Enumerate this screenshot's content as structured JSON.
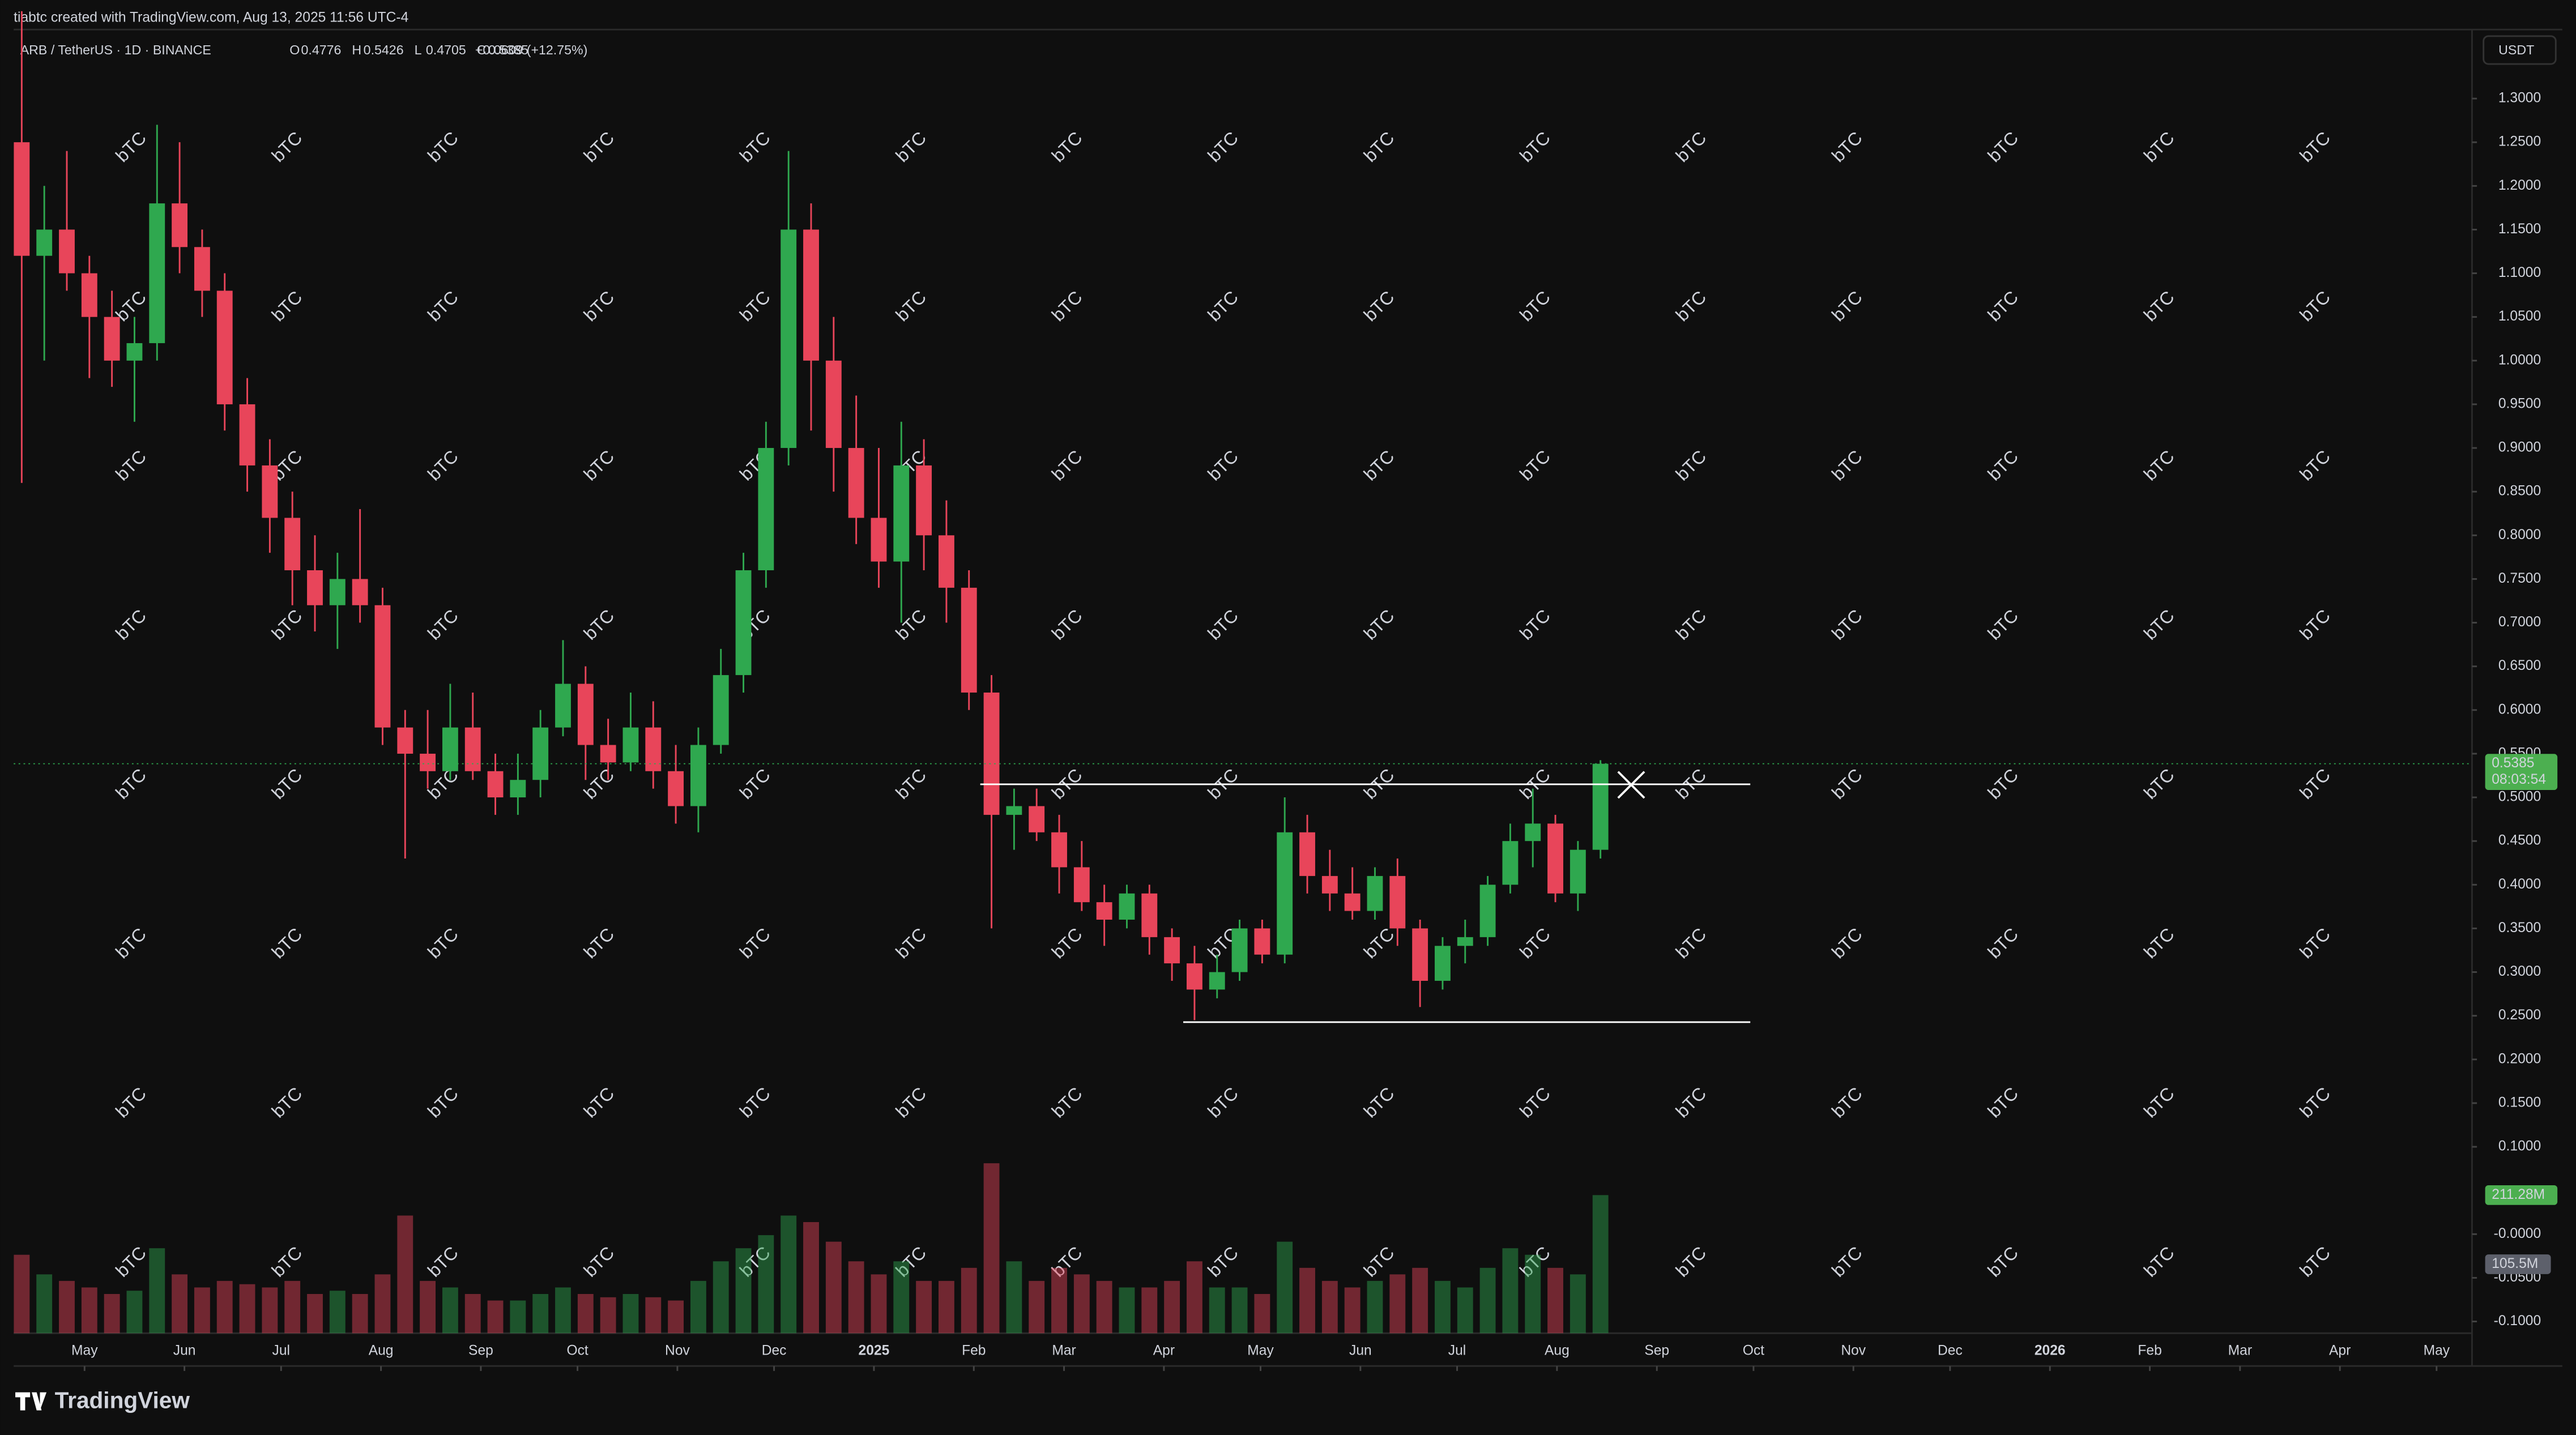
{
  "credit": "tiabtc created with TradingView.com, Aug 13, 2025 11:56 UTC-4",
  "currency_button": "USDT",
  "brand": "TradingView",
  "watermark": "bTC",
  "chart_data": {
    "type": "candlestick",
    "symbol": "ARB / TetherUS · 1D · BINANCE",
    "ohlc": [
      {
        "label": "O",
        "value": 0.4776
      },
      {
        "label": "H",
        "value": 0.5426
      },
      {
        "label": "L",
        "value": 0.4705
      },
      {
        "label": "C",
        "value": 0.5385
      }
    ],
    "change": "+0.0609 (+12.75%)",
    "up_color": "#2fa84f",
    "down_color": "#e8455a",
    "xlim": [
      "2024-04-09",
      "2026-05-12"
    ],
    "xticks": [
      {
        "value": "2024-05-01",
        "label": "May"
      },
      {
        "value": "2024-06-01",
        "label": "Jun"
      },
      {
        "value": "2024-07-01",
        "label": "Jul"
      },
      {
        "value": "2024-08-01",
        "label": "Aug"
      },
      {
        "value": "2024-09-01",
        "label": "Sep"
      },
      {
        "value": "2024-10-01",
        "label": "Oct"
      },
      {
        "value": "2024-11-01",
        "label": "Nov"
      },
      {
        "value": "2024-12-01",
        "label": "Dec"
      },
      {
        "value": "2025-01-01",
        "label": "2025"
      },
      {
        "value": "2025-02-01",
        "label": "Feb"
      },
      {
        "value": "2025-03-01",
        "label": "Mar"
      },
      {
        "value": "2025-04-01",
        "label": "Apr"
      },
      {
        "value": "2025-05-01",
        "label": "May"
      },
      {
        "value": "2025-06-01",
        "label": "Jun"
      },
      {
        "value": "2025-07-01",
        "label": "Jul"
      },
      {
        "value": "2025-08-01",
        "label": "Aug"
      },
      {
        "value": "2025-09-01",
        "label": "Sep"
      },
      {
        "value": "2025-10-01",
        "label": "Oct"
      },
      {
        "value": "2025-11-01",
        "label": "Nov"
      },
      {
        "value": "2025-12-01",
        "label": "Dec"
      },
      {
        "value": "2026-01-01",
        "label": "2026"
      },
      {
        "value": "2026-02-01",
        "label": "Feb"
      },
      {
        "value": "2026-03-01",
        "label": "Mar"
      },
      {
        "value": "2026-04-01",
        "label": "Apr"
      },
      {
        "value": "2026-05-01",
        "label": "May"
      }
    ],
    "ylim": [
      -0.151,
      1.379
    ],
    "yticks": [
      {
        "value": 1.3,
        "label": "1.3000"
      },
      {
        "value": 1.25,
        "label": "1.2500"
      },
      {
        "value": 1.2,
        "label": "1.2000"
      },
      {
        "value": 1.15,
        "label": "1.1500"
      },
      {
        "value": 1.1,
        "label": "1.1000"
      },
      {
        "value": 1.05,
        "label": "1.0500"
      },
      {
        "value": 1.0,
        "label": "1.0000"
      },
      {
        "value": 0.95,
        "label": "0.9500"
      },
      {
        "value": 0.9,
        "label": "0.9000"
      },
      {
        "value": 0.85,
        "label": "0.8500"
      },
      {
        "value": 0.8,
        "label": "0.8000"
      },
      {
        "value": 0.75,
        "label": "0.7500"
      },
      {
        "value": 0.7,
        "label": "0.7000"
      },
      {
        "value": 0.65,
        "label": "0.6500"
      },
      {
        "value": 0.6,
        "label": "0.6000"
      },
      {
        "value": 0.55,
        "label": "0.5500"
      },
      {
        "value": 0.5,
        "label": "0.5000"
      },
      {
        "value": 0.45,
        "label": "0.4500"
      },
      {
        "value": 0.4,
        "label": "0.4000"
      },
      {
        "value": 0.35,
        "label": "0.3500"
      },
      {
        "value": 0.3,
        "label": "0.3000"
      },
      {
        "value": 0.25,
        "label": "0.2500"
      },
      {
        "value": 0.2,
        "label": "0.2000"
      },
      {
        "value": 0.15,
        "label": "0.1500"
      },
      {
        "value": 0.1,
        "label": "0.1000"
      },
      {
        "value": 0,
        "label": "-0.0000"
      },
      {
        "value": -0.05,
        "label": "-0.0500"
      },
      {
        "value": -0.1,
        "label": "-0.1000"
      }
    ],
    "grid": false,
    "x": [
      "2024-04-08",
      "2024-04-15",
      "2024-04-22",
      "2024-04-29",
      "2024-05-06",
      "2024-05-13",
      "2024-05-20",
      "2024-05-27",
      "2024-06-03",
      "2024-06-10",
      "2024-06-17",
      "2024-06-24",
      "2024-07-01",
      "2024-07-08",
      "2024-07-15",
      "2024-07-22",
      "2024-07-29",
      "2024-08-05",
      "2024-08-12",
      "2024-08-19",
      "2024-08-26",
      "2024-09-02",
      "2024-09-09",
      "2024-09-16",
      "2024-09-23",
      "2024-09-30",
      "2024-10-07",
      "2024-10-14",
      "2024-10-21",
      "2024-10-28",
      "2024-11-04",
      "2024-11-11",
      "2024-11-18",
      "2024-11-25",
      "2024-12-02",
      "2024-12-09",
      "2024-12-16",
      "2024-12-23",
      "2024-12-30",
      "2025-01-06",
      "2025-01-13",
      "2025-01-20",
      "2025-01-27",
      "2025-02-03",
      "2025-02-10",
      "2025-02-17",
      "2025-02-24",
      "2025-03-03",
      "2025-03-10",
      "2025-03-17",
      "2025-03-24",
      "2025-03-31",
      "2025-04-07",
      "2025-04-14",
      "2025-04-21",
      "2025-04-28",
      "2025-05-05",
      "2025-05-12",
      "2025-05-19",
      "2025-05-26",
      "2025-06-02",
      "2025-06-09",
      "2025-06-16",
      "2025-06-23",
      "2025-06-30",
      "2025-07-07",
      "2025-07-14",
      "2025-07-21",
      "2025-07-28",
      "2025-08-04",
      "2025-08-11"
    ],
    "open": [
      1.25,
      1.12,
      1.15,
      1.1,
      1.05,
      1.0,
      1.02,
      1.18,
      1.13,
      1.08,
      0.95,
      0.88,
      0.82,
      0.76,
      0.72,
      0.75,
      0.72,
      0.58,
      0.55,
      0.53,
      0.58,
      0.53,
      0.5,
      0.52,
      0.58,
      0.63,
      0.56,
      0.54,
      0.58,
      0.53,
      0.49,
      0.56,
      0.64,
      0.76,
      0.9,
      1.15,
      1.0,
      0.9,
      0.82,
      0.77,
      0.88,
      0.8,
      0.74,
      0.62,
      0.48,
      0.49,
      0.46,
      0.42,
      0.38,
      0.36,
      0.39,
      0.34,
      0.31,
      0.28,
      0.3,
      0.35,
      0.32,
      0.46,
      0.41,
      0.39,
      0.37,
      0.41,
      0.35,
      0.29,
      0.33,
      0.34,
      0.4,
      0.45,
      0.47,
      0.39,
      0.44
    ],
    "high": [
      1.4,
      1.2,
      1.24,
      1.12,
      1.08,
      1.05,
      1.27,
      1.25,
      1.15,
      1.1,
      0.98,
      0.91,
      0.85,
      0.8,
      0.78,
      0.83,
      0.74,
      0.6,
      0.6,
      0.63,
      0.62,
      0.55,
      0.55,
      0.6,
      0.68,
      0.65,
      0.59,
      0.62,
      0.61,
      0.56,
      0.58,
      0.67,
      0.78,
      0.93,
      1.24,
      1.18,
      1.05,
      0.96,
      0.9,
      0.93,
      0.91,
      0.84,
      0.76,
      0.64,
      0.51,
      0.51,
      0.48,
      0.45,
      0.4,
      0.4,
      0.4,
      0.35,
      0.33,
      0.32,
      0.36,
      0.36,
      0.5,
      0.48,
      0.44,
      0.42,
      0.42,
      0.43,
      0.36,
      0.34,
      0.36,
      0.41,
      0.47,
      0.51,
      0.48,
      0.45,
      0.5426
    ],
    "low": [
      0.86,
      1.0,
      1.08,
      0.98,
      0.97,
      0.93,
      1.0,
      1.1,
      1.05,
      0.92,
      0.85,
      0.78,
      0.72,
      0.69,
      0.67,
      0.7,
      0.56,
      0.43,
      0.51,
      0.52,
      0.52,
      0.48,
      0.48,
      0.5,
      0.57,
      0.52,
      0.52,
      0.53,
      0.51,
      0.47,
      0.46,
      0.55,
      0.62,
      0.74,
      0.88,
      0.92,
      0.85,
      0.79,
      0.74,
      0.7,
      0.76,
      0.7,
      0.6,
      0.35,
      0.44,
      0.45,
      0.39,
      0.37,
      0.33,
      0.35,
      0.32,
      0.29,
      0.245,
      0.27,
      0.29,
      0.31,
      0.31,
      0.39,
      0.37,
      0.36,
      0.36,
      0.33,
      0.26,
      0.28,
      0.31,
      0.33,
      0.39,
      0.42,
      0.38,
      0.37,
      0.43
    ],
    "close": [
      1.12,
      1.15,
      1.1,
      1.05,
      1.0,
      1.02,
      1.18,
      1.13,
      1.08,
      0.95,
      0.88,
      0.82,
      0.76,
      0.72,
      0.75,
      0.72,
      0.58,
      0.55,
      0.53,
      0.58,
      0.53,
      0.5,
      0.52,
      0.58,
      0.63,
      0.56,
      0.54,
      0.58,
      0.53,
      0.49,
      0.56,
      0.64,
      0.76,
      0.9,
      1.15,
      1.0,
      0.9,
      0.82,
      0.77,
      0.88,
      0.8,
      0.74,
      0.62,
      0.48,
      0.49,
      0.46,
      0.42,
      0.38,
      0.36,
      0.39,
      0.34,
      0.31,
      0.28,
      0.3,
      0.35,
      0.32,
      0.46,
      0.41,
      0.39,
      0.37,
      0.41,
      0.35,
      0.29,
      0.33,
      0.34,
      0.4,
      0.45,
      0.47,
      0.39,
      0.44,
      0.5385
    ],
    "volume": [
      120,
      90,
      80,
      70,
      60,
      65,
      130,
      90,
      70,
      80,
      75,
      70,
      80,
      60,
      65,
      60,
      90,
      180,
      80,
      70,
      60,
      50,
      50,
      60,
      70,
      60,
      55,
      60,
      55,
      50,
      80,
      110,
      130,
      150,
      180,
      170,
      140,
      110,
      90,
      110,
      80,
      80,
      100,
      260,
      110,
      80,
      100,
      90,
      80,
      70,
      70,
      80,
      110,
      70,
      70,
      60,
      140,
      100,
      80,
      70,
      80,
      90,
      100,
      80,
      70,
      100,
      130,
      120,
      100,
      90,
      211.28
    ],
    "volume_lim": [
      0,
      530
    ],
    "volume_label": {
      "value": 211.28,
      "label": "211.28M"
    },
    "volume_ma_label": {
      "value": 105.5,
      "label": "105.5M"
    },
    "last_price": {
      "value": 0.5385,
      "countdown": "08:03:54"
    },
    "levels": [
      {
        "start": "2025-02-03",
        "end": "2025-09-30",
        "price": 0.515
      },
      {
        "start": "2025-04-07",
        "end": "2025-09-30",
        "price": 0.2427
      }
    ]
  }
}
